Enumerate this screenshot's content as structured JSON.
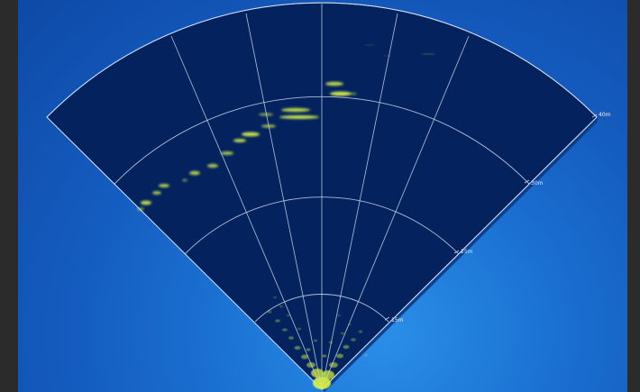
{
  "theme": {
    "frame_bg": "#2b2b2b",
    "viewport_accent": "#1a6fd0",
    "sector_fill": "#03225e",
    "grid_line": "#c9d6ec",
    "echo_color": "#d9f24a"
  },
  "sonar": {
    "view": "sector-scan",
    "ranges": [
      {
        "label": "15m"
      },
      {
        "label": "25m"
      },
      {
        "label": "30m"
      },
      {
        "label": "40m"
      }
    ]
  }
}
